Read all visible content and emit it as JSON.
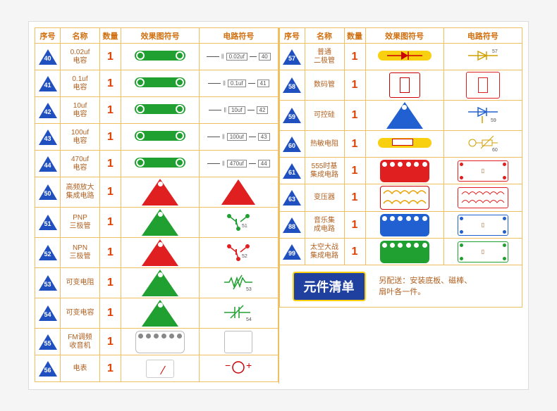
{
  "headers": {
    "seq": "序号",
    "name": "名称",
    "qty": "数量",
    "shape": "效果图符号",
    "symbol": "电路符号"
  },
  "left": [
    {
      "seq": "40",
      "name": "0.02uf\n电容",
      "qty": 1,
      "shape_type": "pill-green",
      "sym": "cap",
      "sym_text": "0.02uf",
      "sym_num": "40"
    },
    {
      "seq": "41",
      "name": "0.1uf\n电容",
      "qty": 1,
      "shape_type": "pill-green",
      "sym": "cap",
      "sym_text": "0.1uf",
      "sym_num": "41"
    },
    {
      "seq": "42",
      "name": "10uf\n电容",
      "qty": 1,
      "shape_type": "pill-green",
      "sym": "cap",
      "sym_text": "10uf",
      "sym_num": "42"
    },
    {
      "seq": "43",
      "name": "100uf\n电容",
      "qty": 1,
      "shape_type": "pill-green",
      "sym": "cap",
      "sym_text": "100uf",
      "sym_num": "43"
    },
    {
      "seq": "44",
      "name": "470uf\n电容",
      "qty": 1,
      "shape_type": "pill-green",
      "sym": "cap",
      "sym_text": "470uf",
      "sym_num": "44"
    },
    {
      "seq": "50",
      "name": "高频放大\n集成电路",
      "qty": 1,
      "shape_type": "tri-red",
      "sym": "tri-outline-red"
    },
    {
      "seq": "51",
      "name": "PNP\n三极管",
      "qty": 1,
      "shape_type": "tri-grn",
      "sym": "transistor-g",
      "sym_num": "51"
    },
    {
      "seq": "52",
      "name": "NPN\n三极管",
      "qty": 1,
      "shape_type": "tri-red",
      "sym": "transistor-r",
      "sym_num": "52"
    },
    {
      "seq": "53",
      "name": "可变电阻",
      "qty": 1,
      "shape_type": "tri-grn",
      "sym": "varres",
      "sym_num": "53"
    },
    {
      "seq": "54",
      "name": "可变电容",
      "qty": 1,
      "shape_type": "tri-grn",
      "sym": "varcap",
      "sym_num": "54"
    },
    {
      "seq": "55",
      "name": "FM调频\n收音机",
      "qty": 1,
      "shape_type": "blk-wht",
      "sym": "fm-box"
    },
    {
      "seq": "56",
      "name": "电表",
      "qty": 1,
      "shape_type": "meter",
      "sym": "meter-sym"
    }
  ],
  "right": [
    {
      "seq": "57",
      "name": "普通\n二极管",
      "qty": 1,
      "shape_type": "pill-yellow-diode",
      "sym": "diode",
      "sym_num": "57"
    },
    {
      "seq": "58",
      "name": "数码管",
      "qty": 1,
      "shape_type": "digit-box",
      "sym": "digit-sym"
    },
    {
      "seq": "59",
      "name": "可控硅",
      "qty": 1,
      "shape_type": "tri-blue",
      "sym": "scr",
      "sym_num": "59"
    },
    {
      "seq": "60",
      "name": "热敏电阻",
      "qty": 1,
      "shape_type": "pill-therm",
      "sym": "therm",
      "sym_num": "60"
    },
    {
      "seq": "61",
      "name": "555时基\n集成电路",
      "qty": 1,
      "shape_type": "blk-red",
      "sym": "box-r"
    },
    {
      "seq": "63",
      "name": "变压器",
      "qty": 1,
      "shape_type": "blk-xfmr",
      "sym": "xfmr-sym"
    },
    {
      "seq": "88",
      "name": "音乐集\n成电路",
      "qty": 1,
      "shape_type": "blk-blue",
      "sym": "box-b"
    },
    {
      "seq": "99",
      "name": "太空大战\n集成电路",
      "qty": 1,
      "shape_type": "blk-grn",
      "sym": "box-g"
    }
  ],
  "banner": "元件清单",
  "note": "另配送：安装底板、磁棒、\n扇叶各一件。",
  "colors": {
    "red": "#e02020",
    "green": "#20a030",
    "blue": "#2060d0",
    "yellow": "#f8d010",
    "orange_border": "#f0c060",
    "text": "#a06020",
    "qty": "#e04000",
    "tri_seq": "#2050c0"
  }
}
